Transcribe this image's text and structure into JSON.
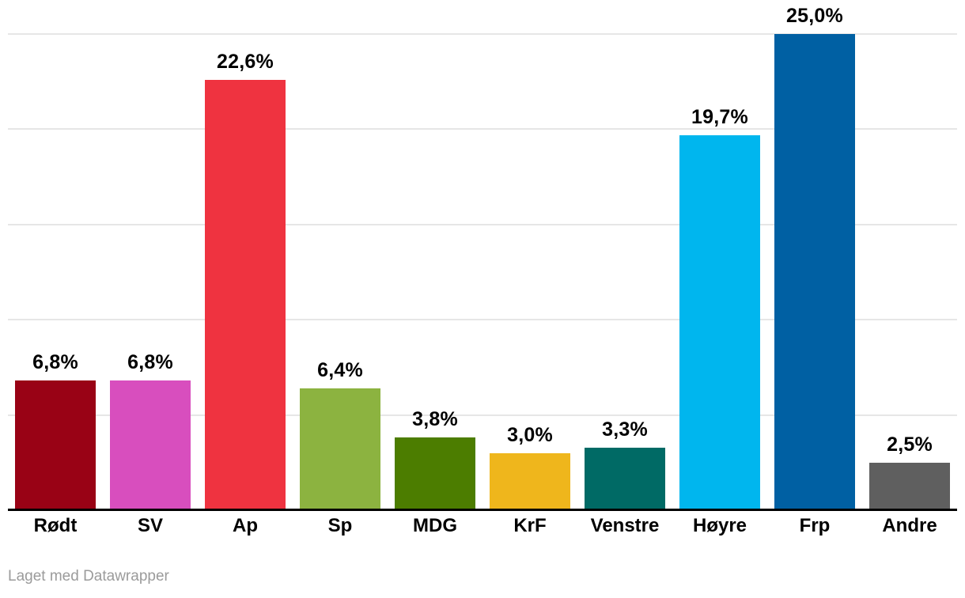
{
  "chart_data": {
    "type": "bar",
    "title": "",
    "xlabel": "",
    "ylabel": "",
    "categories": [
      "Rødt",
      "SV",
      "Ap",
      "Sp",
      "MDG",
      "KrF",
      "Venstre",
      "Høyre",
      "Frp",
      "Andre"
    ],
    "values": [
      6.8,
      6.8,
      22.6,
      6.4,
      3.8,
      3.0,
      3.3,
      19.7,
      25.0,
      2.5
    ],
    "value_labels": [
      "6,8%",
      "6,8%",
      "22,6%",
      "6,4%",
      "3,8%",
      "3,0%",
      "3,3%",
      "19,7%",
      "25,0%",
      "2,5%"
    ],
    "bar_colors": [
      "#990215",
      "#D84EBE",
      "#EF3340",
      "#8CB340",
      "#4C7D00",
      "#EFB61C",
      "#006A65",
      "#00B6EE",
      "#0060A3",
      "#5F5F5F"
    ],
    "ylim": [
      0,
      25
    ],
    "gridline_values": [
      5,
      10,
      15,
      20,
      25
    ],
    "grid": "horizontal",
    "legend": "none",
    "value_label_position": "above-bar",
    "decimal_separator": ","
  },
  "colors": {
    "background": "#FFFFFF",
    "gridline": "#E6E6E6",
    "axis_line": "#000000",
    "label_text": "#000000",
    "footer_text": "#9B9B9B"
  },
  "footer": {
    "attribution": "Laget med Datawrapper"
  }
}
